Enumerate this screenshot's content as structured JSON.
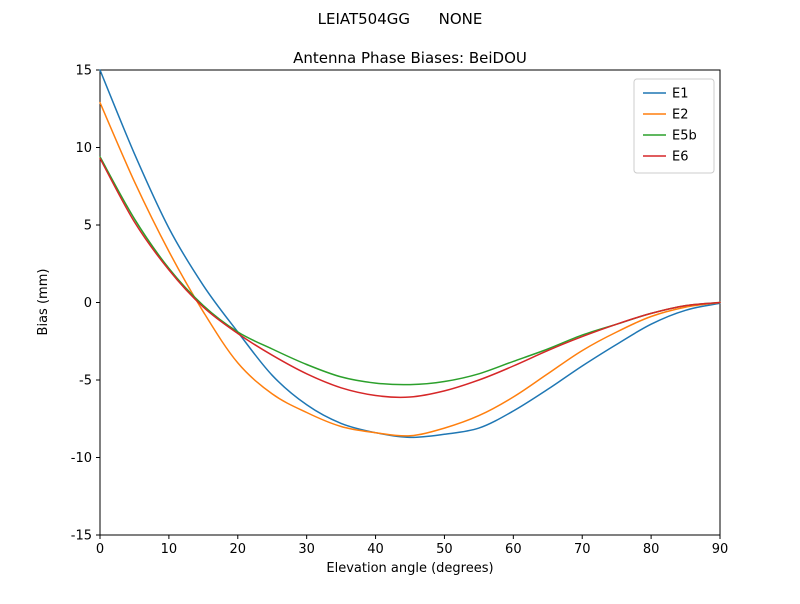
{
  "figure": {
    "suptitle": "LEIAT504GG      NONE"
  },
  "chart_data": {
    "type": "line",
    "title": "Antenna Phase Biases: BeiDOU",
    "suptitle": "LEIAT504GG      NONE",
    "xlabel": "Elevation angle (degrees)",
    "ylabel": "Bias (mm)",
    "xlim": [
      0,
      90
    ],
    "ylim": [
      -15,
      15
    ],
    "xticks": [
      0,
      10,
      20,
      30,
      40,
      50,
      60,
      70,
      80,
      90
    ],
    "yticks": [
      -15,
      -10,
      -5,
      0,
      5,
      10,
      15
    ],
    "grid": false,
    "legend_position": "upper right",
    "x": [
      0,
      5,
      10,
      15,
      20,
      25,
      30,
      35,
      40,
      45,
      50,
      55,
      60,
      65,
      70,
      75,
      80,
      85,
      90
    ],
    "series": [
      {
        "name": "E1",
        "color": "#1f77b4",
        "values": [
          15.0,
          9.6,
          4.8,
          1.1,
          -1.9,
          -4.7,
          -6.6,
          -7.8,
          -8.4,
          -8.7,
          -8.5,
          -8.1,
          -7.0,
          -5.6,
          -4.1,
          -2.7,
          -1.4,
          -0.5,
          -0.05
        ]
      },
      {
        "name": "E2",
        "color": "#ff7f0e",
        "values": [
          12.9,
          7.8,
          3.3,
          -0.6,
          -3.9,
          -5.9,
          -7.1,
          -8.0,
          -8.4,
          -8.6,
          -8.1,
          -7.3,
          -6.1,
          -4.6,
          -3.1,
          -1.9,
          -0.9,
          -0.3,
          0.0
        ]
      },
      {
        "name": "E5b",
        "color": "#2ca02c",
        "values": [
          9.4,
          5.4,
          2.2,
          -0.2,
          -1.9,
          -3.0,
          -4.0,
          -4.8,
          -5.2,
          -5.3,
          -5.1,
          -4.6,
          -3.8,
          -3.0,
          -2.1,
          -1.4,
          -0.7,
          -0.2,
          0.0
        ]
      },
      {
        "name": "E6",
        "color": "#d62728",
        "values": [
          9.3,
          5.2,
          2.1,
          -0.3,
          -2.0,
          -3.4,
          -4.6,
          -5.5,
          -6.0,
          -6.1,
          -5.7,
          -5.0,
          -4.1,
          -3.1,
          -2.2,
          -1.4,
          -0.7,
          -0.2,
          0.0
        ]
      }
    ]
  }
}
